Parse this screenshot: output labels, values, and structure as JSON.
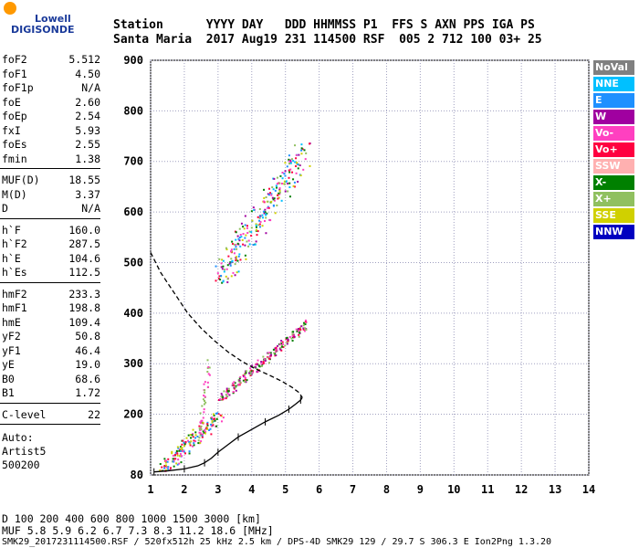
{
  "logo": {
    "top": "Lowell",
    "bottom": "DIGISONDE"
  },
  "header": {
    "line1": "Station      YYYY DAY   DDD HHMMSS P1  FFS S AXN PPS IGA PS",
    "line2": "Santa Maria  2017 Aug19 231 114500 RSF  005 2 712 100 03+ 25"
  },
  "params_group1": [
    {
      "k": "foF2",
      "v": "5.512"
    },
    {
      "k": "foF1",
      "v": "4.50"
    },
    {
      "k": "foF1p",
      "v": "N/A"
    },
    {
      "k": "foE",
      "v": "2.60"
    },
    {
      "k": "foEp",
      "v": "2.54"
    },
    {
      "k": "fxI",
      "v": "5.93"
    },
    {
      "k": "foEs",
      "v": "2.55"
    },
    {
      "k": "fmin",
      "v": "1.38"
    }
  ],
  "params_group2": [
    {
      "k": "MUF(D)",
      "v": "18.55"
    },
    {
      "k": "M(D)",
      "v": "3.37"
    },
    {
      "k": "D",
      "v": "N/A"
    }
  ],
  "params_group3": [
    {
      "k": "h`F",
      "v": "160.0"
    },
    {
      "k": "h`F2",
      "v": "287.5"
    },
    {
      "k": "h`E",
      "v": "104.6"
    },
    {
      "k": "h`Es",
      "v": "112.5"
    }
  ],
  "params_group4": [
    {
      "k": "hmF2",
      "v": "233.3"
    },
    {
      "k": "hmF1",
      "v": "198.8"
    },
    {
      "k": "hmE",
      "v": "109.4"
    },
    {
      "k": "yF2",
      "v": "50.8"
    },
    {
      "k": "yF1",
      "v": "46.4"
    },
    {
      "k": "yE",
      "v": "19.0"
    },
    {
      "k": "B0",
      "v": "68.6"
    },
    {
      "k": "B1",
      "v": "1.72"
    }
  ],
  "params_group5": [
    {
      "k": "C-level",
      "v": "22"
    }
  ],
  "auto": [
    "Auto:",
    "Artist5",
    "500200"
  ],
  "legend": [
    {
      "label": "NoVal",
      "bg": "#808080",
      "fg": "#ffffff"
    },
    {
      "label": "NNE",
      "bg": "#00c0ff",
      "fg": "#ffffff"
    },
    {
      "label": "E",
      "bg": "#1e90ff",
      "fg": "#ffffff"
    },
    {
      "label": "W",
      "bg": "#a000a0",
      "fg": "#ffffff"
    },
    {
      "label": "Vo-",
      "bg": "#ff40c0",
      "fg": "#ffffff"
    },
    {
      "label": "Vo+",
      "bg": "#ff0040",
      "fg": "#ffffff"
    },
    {
      "label": "SSW",
      "bg": "#ffb0b0",
      "fg": "#ffffff"
    },
    {
      "label": "X-",
      "bg": "#008000",
      "fg": "#ffffff"
    },
    {
      "label": "X+",
      "bg": "#90c060",
      "fg": "#ffffff"
    },
    {
      "label": "SSE",
      "bg": "#d0d000",
      "fg": "#ffffff"
    },
    {
      "label": "NNW",
      "bg": "#0000c0",
      "fg": "#ffffff"
    }
  ],
  "chart_data": {
    "type": "scatter",
    "title": "",
    "xlim": [
      1,
      14
    ],
    "ylim": [
      80,
      900
    ],
    "x_ticks": [
      "1",
      "2",
      "3",
      "4",
      "5",
      "6",
      "7",
      "8",
      "9",
      "10",
      "11",
      "12",
      "13",
      "14"
    ],
    "y_ticks": [
      "80",
      "200",
      "300",
      "400",
      "500",
      "600",
      "700",
      "800",
      "900"
    ],
    "grid": true,
    "series": [
      {
        "name": "profile",
        "style": "solid",
        "x": [
          1.1,
          1.5,
          2.0,
          2.4,
          2.6,
          2.8,
          3.0,
          3.3,
          3.6,
          4.0,
          4.4,
          4.8,
          5.1,
          5.3,
          5.45,
          5.5
        ],
        "y": [
          86,
          88,
          92,
          98,
          104,
          113,
          125,
          140,
          155,
          170,
          185,
          198,
          210,
          220,
          228,
          233
        ]
      },
      {
        "name": "topside",
        "style": "dashed",
        "x": [
          1.0,
          1.3,
          1.7,
          2.1,
          2.5,
          2.9,
          3.3,
          3.7,
          4.1,
          4.5,
          4.9,
          5.2,
          5.4,
          5.5
        ],
        "y": [
          520,
          480,
          440,
          400,
          370,
          345,
          323,
          305,
          290,
          278,
          265,
          253,
          243,
          233
        ]
      }
    ]
  },
  "bottom": {
    "row1": "D     100  200  400  600  800  1000  1500  3000 [km]",
    "row2": "MUF   5.8  5.9  6.2  6.7  7.3  8.3  11.2  18.6 [MHz]",
    "footer": "SMK29_2017231114500.RSF / 520fx512h 25 kHz 2.5 km / DPS-4D SMK29 129 / 29.7 S 306.3 E Ion2Png 1.3.20"
  }
}
